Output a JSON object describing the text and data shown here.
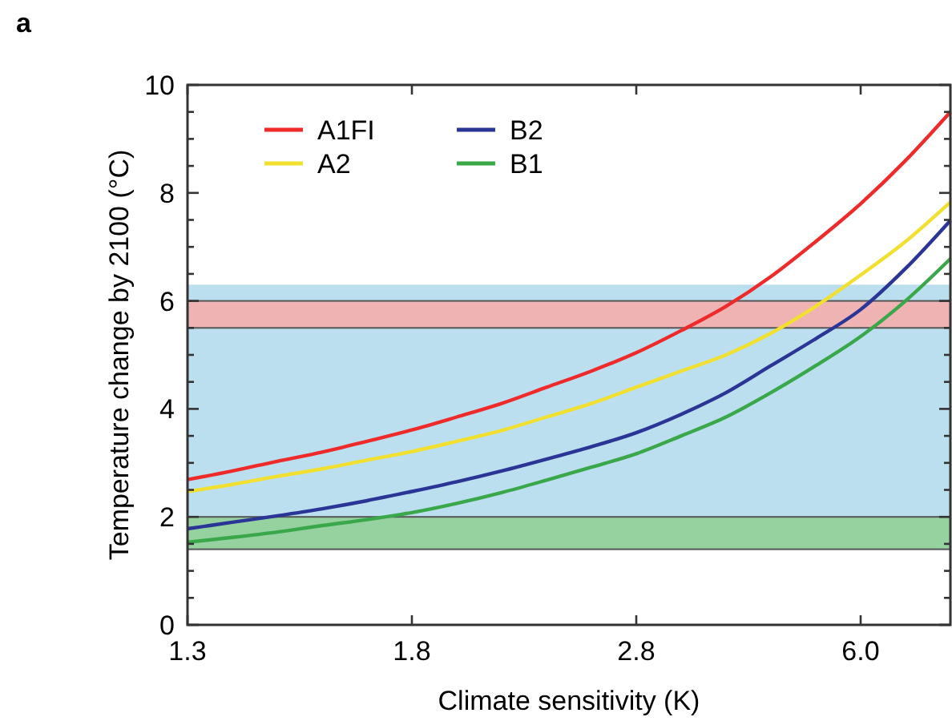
{
  "chart_data": {
    "type": "line",
    "xlabel": "Climate sensitivity (K)",
    "ylabel": "Temperature change by 2100 (°C)",
    "annotations": [
      "a"
    ],
    "categories": [
      "1.3",
      null,
      null,
      null,
      null,
      "1.8",
      null,
      null,
      null,
      null,
      "2.8",
      null,
      null,
      null,
      null,
      "6.0",
      null,
      null
    ],
    "ylim": [
      0,
      10
    ],
    "yticks": [
      0,
      {
        "value": 0.5,
        "label": null
      },
      2,
      {
        "value": 1,
        "label": null
      },
      {
        "value": 1.5,
        "label": null
      },
      {
        "value": 2.5,
        "label": null
      },
      {
        "value": 3,
        "label": null
      },
      {
        "value": 3.5,
        "label": null
      },
      4,
      {
        "value": 4.5,
        "label": null
      },
      {
        "value": 5,
        "label": null
      },
      {
        "value": 5.5,
        "label": null
      },
      6,
      {
        "value": 6.5,
        "label": null
      },
      {
        "value": 7,
        "label": null
      },
      {
        "value": 7.5,
        "label": null
      },
      8,
      {
        "value": 8.5,
        "label": null
      },
      {
        "value": 9,
        "label": null
      },
      {
        "value": 9.5,
        "label": null
      },
      10
    ],
    "bands": [
      {
        "axis": "y",
        "from": 1.4,
        "to": 6.3,
        "label": null,
        "color": "#bcdff0"
      },
      {
        "axis": "y",
        "from": 5.5,
        "to": 6.0,
        "label": null,
        "color": "#efb3b3"
      },
      {
        "axis": "y",
        "from": 1.4,
        "to": 2.0,
        "label": null,
        "color": "#95d2a0"
      }
    ],
    "series": [
      {
        "name": "A1FI",
        "color": "#ee2a2a",
        "values": [
          2.69,
          2.85,
          3.03,
          3.2,
          3.4,
          3.61,
          3.85,
          4.1,
          4.4,
          4.7,
          5.04,
          5.45,
          5.9,
          6.45,
          7.1,
          7.8,
          8.6,
          9.5
        ]
      },
      {
        "name": "A2",
        "color": "#f2e030",
        "values": [
          2.47,
          2.6,
          2.75,
          2.89,
          3.05,
          3.21,
          3.4,
          3.6,
          3.85,
          4.1,
          4.4,
          4.7,
          5.0,
          5.4,
          5.9,
          6.48,
          7.1,
          7.83
        ]
      },
      {
        "name": "B2",
        "color": "#2b3596",
        "values": [
          1.78,
          1.9,
          2.02,
          2.15,
          2.3,
          2.47,
          2.65,
          2.85,
          3.07,
          3.3,
          3.56,
          3.9,
          4.3,
          4.8,
          5.3,
          5.84,
          6.6,
          7.49
        ]
      },
      {
        "name": "B1",
        "color": "#3aa84a",
        "values": [
          1.53,
          1.62,
          1.72,
          1.84,
          1.95,
          2.08,
          2.25,
          2.45,
          2.68,
          2.92,
          3.17,
          3.5,
          3.85,
          4.3,
          4.8,
          5.34,
          6.0,
          6.78
        ]
      }
    ],
    "legend": "top left",
    "marker": "none",
    "line_style": "solid"
  }
}
